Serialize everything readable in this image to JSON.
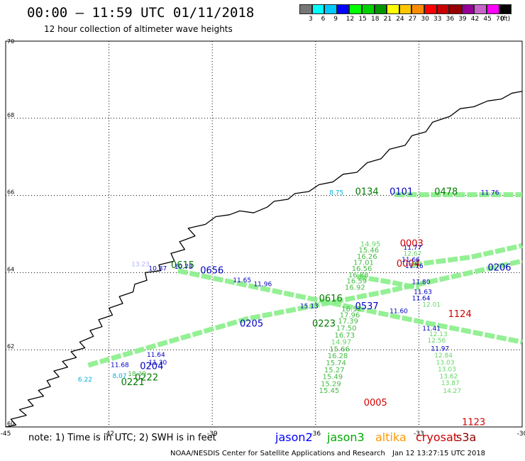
{
  "header": {
    "title": "00:00 – 11:59 UTC 01/11/2018",
    "subtitle": "12 hour collection of altimeter wave heights"
  },
  "colorbar": {
    "colors": [
      "#777777",
      "#00ffff",
      "#00c8ff",
      "#0000ff",
      "#00ff00",
      "#00d200",
      "#009600",
      "#ffff00",
      "#ffc800",
      "#ff8c00",
      "#ff0000",
      "#c80000",
      "#960000",
      "#960096",
      "#c864c8",
      "#ff00ff",
      "#000000"
    ],
    "labels": [
      "3",
      "6",
      "9",
      "12",
      "15",
      "18",
      "21",
      "24",
      "27",
      "30",
      "33",
      "36",
      "39",
      "42",
      "45",
      "70",
      "(ft)"
    ]
  },
  "axes": {
    "lon_labels": [
      "-45",
      "-42",
      "-39",
      "-36",
      "-33",
      "-30"
    ],
    "lat_labels": [
      "70",
      "68",
      "66",
      "64",
      "62",
      "60"
    ]
  },
  "chart_data": {
    "type": "scatter",
    "x_range": [
      -45,
      -30
    ],
    "y_range": [
      60,
      70
    ],
    "labels": [
      {
        "text": "0003",
        "lon": -33.55,
        "lat": 64.68,
        "color": "#d00000",
        "size": 13
      },
      {
        "text": "0004",
        "lon": -33.65,
        "lat": 64.15,
        "color": "#d00000",
        "size": 13
      },
      {
        "text": "1124",
        "lon": -32.15,
        "lat": 62.85,
        "color": "#d00000",
        "size": 13
      },
      {
        "text": "0005",
        "lon": -34.6,
        "lat": 60.55,
        "color": "#d00000",
        "size": 13
      },
      {
        "text": "1123",
        "lon": -31.75,
        "lat": 60.05,
        "color": "#d00000",
        "size": 13
      },
      {
        "text": "0615",
        "lon": -40.2,
        "lat": 64.12,
        "color": "#007a00",
        "size": 13
      },
      {
        "text": "0616",
        "lon": -35.9,
        "lat": 63.25,
        "color": "#007a00",
        "size": 13
      },
      {
        "text": "0223",
        "lon": -36.1,
        "lat": 62.6,
        "color": "#007a00",
        "size": 13
      },
      {
        "text": "0222",
        "lon": -41.25,
        "lat": 61.2,
        "color": "#007a00",
        "size": 13
      },
      {
        "text": "0221",
        "lon": -41.65,
        "lat": 61.08,
        "color": "#007a00",
        "size": 13
      },
      {
        "text": "0134",
        "lon": -34.85,
        "lat": 66.02,
        "color": "#007a00",
        "size": 13
      },
      {
        "text": "0478",
        "lon": -32.55,
        "lat": 66.02,
        "color": "#007a00",
        "size": 13
      },
      {
        "text": "0656",
        "lon": -39.35,
        "lat": 63.98,
        "color": "#0000c0",
        "size": 13
      },
      {
        "text": "0537",
        "lon": -34.85,
        "lat": 63.05,
        "color": "#0000c0",
        "size": 13
      },
      {
        "text": "0205",
        "lon": -38.2,
        "lat": 62.6,
        "color": "#0000c0",
        "size": 13
      },
      {
        "text": "0206",
        "lon": -31.0,
        "lat": 64.05,
        "color": "#0000c0",
        "size": 13
      },
      {
        "text": "0204",
        "lon": -41.1,
        "lat": 61.5,
        "color": "#0000c0",
        "size": 13
      },
      {
        "text": "0101",
        "lon": -33.85,
        "lat": 66.02,
        "color": "#0000c0",
        "size": 13
      },
      {
        "text": "14.95",
        "lon": -34.7,
        "lat": 64.68,
        "color": "#66d666",
        "size": 10
      },
      {
        "text": "15.46",
        "lon": -34.75,
        "lat": 64.52,
        "color": "#44bb44",
        "size": 10
      },
      {
        "text": "16.26",
        "lon": -34.8,
        "lat": 64.36,
        "color": "#44bb44",
        "size": 10
      },
      {
        "text": "17.01",
        "lon": -34.9,
        "lat": 64.2,
        "color": "#44bb44",
        "size": 10
      },
      {
        "text": "16.56",
        "lon": -34.95,
        "lat": 64.04,
        "color": "#44bb44",
        "size": 10
      },
      {
        "text": "16.88",
        "lon": -35.05,
        "lat": 63.88,
        "color": "#44bb44",
        "size": 10
      },
      {
        "text": "16.59",
        "lon": -35.1,
        "lat": 63.72,
        "color": "#44bb44",
        "size": 10
      },
      {
        "text": "16.92",
        "lon": -35.15,
        "lat": 63.56,
        "color": "#44bb44",
        "size": 10
      },
      {
        "text": "16.52",
        "lon": -35.25,
        "lat": 63.0,
        "color": "#44bb44",
        "size": 10
      },
      {
        "text": "17.96",
        "lon": -35.3,
        "lat": 62.84,
        "color": "#44bb44",
        "size": 10
      },
      {
        "text": "17.39",
        "lon": -35.35,
        "lat": 62.68,
        "color": "#44bb44",
        "size": 10
      },
      {
        "text": "17.50",
        "lon": -35.4,
        "lat": 62.5,
        "color": "#44bb44",
        "size": 10
      },
      {
        "text": "16.73",
        "lon": -35.45,
        "lat": 62.32,
        "color": "#44bb44",
        "size": 10
      },
      {
        "text": "14.97",
        "lon": -35.55,
        "lat": 62.14,
        "color": "#66d666",
        "size": 10
      },
      {
        "text": "15.66",
        "lon": -35.6,
        "lat": 61.96,
        "color": "#44bb44",
        "size": 10
      },
      {
        "text": "16.28",
        "lon": -35.65,
        "lat": 61.78,
        "color": "#44bb44",
        "size": 10
      },
      {
        "text": "15.74",
        "lon": -35.7,
        "lat": 61.6,
        "color": "#44bb44",
        "size": 10
      },
      {
        "text": "15.27",
        "lon": -35.75,
        "lat": 61.42,
        "color": "#44bb44",
        "size": 10
      },
      {
        "text": "15.49",
        "lon": -35.8,
        "lat": 61.24,
        "color": "#44bb44",
        "size": 10
      },
      {
        "text": "15.29",
        "lon": -35.85,
        "lat": 61.06,
        "color": "#44bb44",
        "size": 10
      },
      {
        "text": "15.45",
        "lon": -35.9,
        "lat": 60.88,
        "color": "#44bb44",
        "size": 10
      },
      {
        "text": "11.77",
        "lon": -33.45,
        "lat": 64.6,
        "color": "#0000c0",
        "size": 9
      },
      {
        "text": "12.67",
        "lon": -33.45,
        "lat": 64.44,
        "color": "#66d666",
        "size": 9
      },
      {
        "text": "11.66",
        "lon": -33.5,
        "lat": 64.28,
        "color": "#0000c0",
        "size": 9
      },
      {
        "text": "11.16",
        "lon": -33.4,
        "lat": 64.12,
        "color": "#0000c0",
        "size": 9
      },
      {
        "text": "11.80",
        "lon": -33.2,
        "lat": 63.7,
        "color": "#0000c0",
        "size": 9
      },
      {
        "text": "11.63",
        "lon": -33.15,
        "lat": 63.45,
        "color": "#0000c0",
        "size": 9
      },
      {
        "text": "11.64",
        "lon": -33.2,
        "lat": 63.28,
        "color": "#0000c0",
        "size": 9
      },
      {
        "text": "12.01",
        "lon": -32.9,
        "lat": 63.12,
        "color": "#66d666",
        "size": 9
      },
      {
        "text": "11.60",
        "lon": -33.85,
        "lat": 62.95,
        "color": "#0000c0",
        "size": 9
      },
      {
        "text": "11.41",
        "lon": -32.9,
        "lat": 62.5,
        "color": "#0000c0",
        "size": 9
      },
      {
        "text": "12.13",
        "lon": -32.7,
        "lat": 62.35,
        "color": "#66d666",
        "size": 9
      },
      {
        "text": "12.56",
        "lon": -32.75,
        "lat": 62.19,
        "color": "#66d666",
        "size": 9
      },
      {
        "text": "11.97",
        "lon": -32.65,
        "lat": 61.98,
        "color": "#0000c0",
        "size": 9
      },
      {
        "text": "12.84",
        "lon": -32.55,
        "lat": 61.8,
        "color": "#66d666",
        "size": 9
      },
      {
        "text": "13.03",
        "lon": -32.5,
        "lat": 61.62,
        "color": "#66d666",
        "size": 9
      },
      {
        "text": "13.03",
        "lon": -32.45,
        "lat": 61.44,
        "color": "#66d666",
        "size": 9
      },
      {
        "text": "13.62",
        "lon": -32.4,
        "lat": 61.26,
        "color": "#66d666",
        "size": 9
      },
      {
        "text": "13.87",
        "lon": -32.35,
        "lat": 61.08,
        "color": "#66d666",
        "size": 9
      },
      {
        "text": "14.27",
        "lon": -32.3,
        "lat": 60.88,
        "color": "#66d666",
        "size": 9
      },
      {
        "text": "11.96",
        "lon": -37.8,
        "lat": 63.65,
        "color": "#0000c0",
        "size": 9
      },
      {
        "text": "11.65",
        "lon": -38.4,
        "lat": 63.75,
        "color": "#0000c0",
        "size": 9
      },
      {
        "text": "15.13",
        "lon": -36.45,
        "lat": 63.08,
        "color": "#0000c0",
        "size": 9
      },
      {
        "text": "10.87",
        "lon": -40.85,
        "lat": 64.05,
        "color": "#0000c0",
        "size": 9
      },
      {
        "text": "10.78",
        "lon": -40.1,
        "lat": 64.1,
        "color": "#0000c0",
        "size": 9
      },
      {
        "text": "11.64",
        "lon": -40.9,
        "lat": 61.82,
        "color": "#0000c0",
        "size": 9
      },
      {
        "text": "11.68",
        "lon": -41.95,
        "lat": 61.55,
        "color": "#0000c0",
        "size": 9
      },
      {
        "text": "11.30",
        "lon": -40.85,
        "lat": 61.62,
        "color": "#0000c0",
        "size": 9
      },
      {
        "text": "18.39",
        "lon": -41.45,
        "lat": 61.32,
        "color": "#44bb44",
        "size": 9
      },
      {
        "text": "13.23",
        "lon": -41.35,
        "lat": 64.16,
        "color": "#b0b0ff",
        "size": 9
      },
      {
        "text": "8.75",
        "lon": -35.6,
        "lat": 66.02,
        "color": "#00b0e0",
        "size": 9
      },
      {
        "text": "11.76",
        "lon": -31.2,
        "lat": 66.02,
        "color": "#0000c0",
        "size": 9
      },
      {
        "text": "8.07",
        "lon": -41.9,
        "lat": 61.27,
        "color": "#00b0e0",
        "size": 9
      },
      {
        "text": "6.22",
        "lon": -42.9,
        "lat": 61.18,
        "color": "#00b0e0",
        "size": 9
      }
    ],
    "tracks": [
      {
        "color": "#88ee88",
        "points": [
          [
            -33.7,
            66.02
          ],
          [
            -30,
            66.02
          ]
        ]
      },
      {
        "color": "#88ee88",
        "points": [
          [
            -42.6,
            61.6
          ],
          [
            -38,
            62.8
          ],
          [
            -34,
            63.5
          ],
          [
            -30,
            64.3
          ]
        ]
      },
      {
        "color": "#88ee88",
        "points": [
          [
            -40,
            64.05
          ],
          [
            -36,
            63.3
          ],
          [
            -32.8,
            62.7
          ],
          [
            -30,
            62.2
          ]
        ]
      },
      {
        "color": "#88ee88",
        "points": [
          [
            -33.2,
            64.2
          ],
          [
            -31.5,
            64.4
          ],
          [
            -30,
            64.7
          ]
        ]
      },
      {
        "color": "#88ee88",
        "points": [
          [
            -34.8,
            63.9
          ],
          [
            -33.8,
            63.75
          ],
          [
            -33,
            63.6
          ]
        ]
      }
    ],
    "coastline": [
      [
        -45,
        60
      ],
      [
        -44.7,
        60.05
      ],
      [
        -44.85,
        60.2
      ],
      [
        -44.4,
        60.3
      ],
      [
        -44.6,
        60.45
      ],
      [
        -44.2,
        60.55
      ],
      [
        -44.35,
        60.7
      ],
      [
        -43.9,
        60.8
      ],
      [
        -44.05,
        60.95
      ],
      [
        -43.7,
        61.05
      ],
      [
        -43.8,
        61.2
      ],
      [
        -43.45,
        61.3
      ],
      [
        -43.6,
        61.45
      ],
      [
        -43.2,
        61.55
      ],
      [
        -43.35,
        61.7
      ],
      [
        -42.95,
        61.8
      ],
      [
        -43.1,
        61.95
      ],
      [
        -42.7,
        62.05
      ],
      [
        -42.85,
        62.2
      ],
      [
        -42.45,
        62.35
      ],
      [
        -42.55,
        62.5
      ],
      [
        -42.2,
        62.6
      ],
      [
        -42.3,
        62.78
      ],
      [
        -41.9,
        62.9
      ],
      [
        -42.0,
        63.08
      ],
      [
        -41.6,
        63.2
      ],
      [
        -41.7,
        63.38
      ],
      [
        -41.3,
        63.5
      ],
      [
        -41.25,
        63.7
      ],
      [
        -40.9,
        63.8
      ],
      [
        -40.95,
        64.0
      ],
      [
        -40.5,
        64.05
      ],
      [
        -40.55,
        64.2
      ],
      [
        -40.1,
        64.3
      ],
      [
        -40.2,
        64.5
      ],
      [
        -39.8,
        64.6
      ],
      [
        -39.95,
        64.8
      ],
      [
        -39.5,
        64.95
      ],
      [
        -39.7,
        65.15
      ],
      [
        -39.2,
        65.25
      ],
      [
        -38.9,
        65.45
      ],
      [
        -38.5,
        65.5
      ],
      [
        -38.2,
        65.6
      ],
      [
        -37.8,
        65.55
      ],
      [
        -37.4,
        65.7
      ],
      [
        -37.2,
        65.85
      ],
      [
        -36.8,
        65.9
      ],
      [
        -36.6,
        66.05
      ],
      [
        -36.2,
        66.1
      ],
      [
        -35.9,
        66.28
      ],
      [
        -35.5,
        66.35
      ],
      [
        -35.2,
        66.55
      ],
      [
        -34.8,
        66.6
      ],
      [
        -34.5,
        66.85
      ],
      [
        -34.1,
        66.95
      ],
      [
        -33.85,
        67.2
      ],
      [
        -33.4,
        67.3
      ],
      [
        -33.2,
        67.55
      ],
      [
        -32.8,
        67.65
      ],
      [
        -32.6,
        67.9
      ],
      [
        -32.1,
        68.05
      ],
      [
        -31.8,
        68.25
      ],
      [
        -31.4,
        68.3
      ],
      [
        -31.0,
        68.45
      ],
      [
        -30.6,
        68.5
      ],
      [
        -30.3,
        68.65
      ],
      [
        -30,
        68.7
      ]
    ]
  },
  "legend": {
    "note": "note: 1) Time is in UTC; 2) SWH is in feet",
    "satellites": [
      {
        "name": "jason2",
        "color": "#0000ff"
      },
      {
        "name": "jason3",
        "color": "#00aa00"
      },
      {
        "name": "altika",
        "color": "#ff9900"
      },
      {
        "name": "cryosat",
        "color": "#cc0000"
      },
      {
        "name": "s3a",
        "color": "#8b0000"
      }
    ]
  },
  "footer": {
    "credit": "NOAA/NESDIS Center for Satellite Applications and Research",
    "timestamp": "Jan 12 13:27:15 UTC 2018"
  }
}
